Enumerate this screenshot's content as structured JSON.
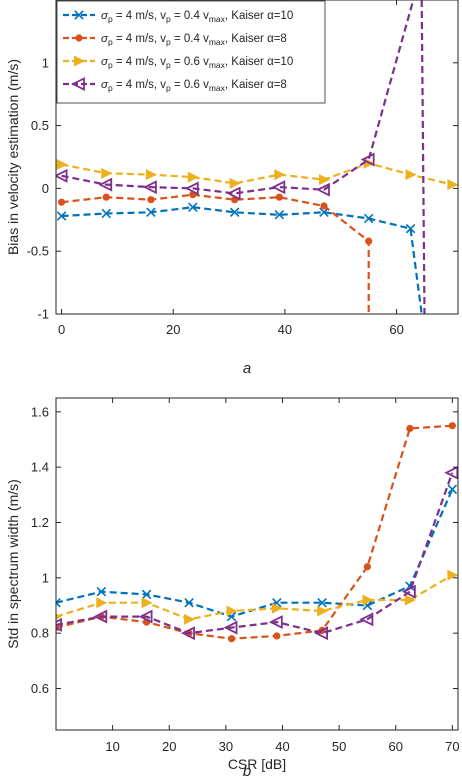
{
  "chart_data": [
    {
      "type": "line",
      "panel_label": "a",
      "xlabel": "",
      "ylabel": "Bias in velocity estimation (m/s)",
      "xlim": [
        -1,
        71
      ],
      "ylim": [
        -1,
        1.5
      ],
      "xticks": [
        0,
        20,
        40,
        60
      ],
      "yticks": [
        -1,
        -0.5,
        0,
        0.5,
        1
      ],
      "ytick_labels": [
        "-1",
        "-0.5",
        "0",
        "0.5",
        "1"
      ],
      "grid": false,
      "legend_position": "top-left",
      "colors": [
        "#0072BD",
        "#D95319",
        "#EDB120",
        "#7E2F8E"
      ],
      "legend": [
        {
          "pre": "σ",
          "pre_sub": "p",
          "mid": " = 4 m/s, v",
          "mid_sub": "p",
          "post": " = 0.4 v",
          "post_sub": "max",
          "end": ", Kaiser α=10"
        },
        {
          "pre": "σ",
          "pre_sub": "p",
          "mid": " = 4 m/s, v",
          "mid_sub": "p",
          "post": " = 0.4 v",
          "post_sub": "max",
          "end": ", Kaiser α=8"
        },
        {
          "pre": "σ",
          "pre_sub": "p",
          "mid": " = 4 m/s, v",
          "mid_sub": "p",
          "post": " = 0.6 v",
          "post_sub": "max",
          "end": ", Kaiser α=10"
        },
        {
          "pre": "σ",
          "pre_sub": "p",
          "mid": " = 4 m/s, v",
          "mid_sub": "p",
          "post": " = 0.6 v",
          "post_sub": "max",
          "end": ", Kaiser α=8"
        }
      ],
      "series": [
        {
          "marker": "x",
          "points": [
            [
              0,
              -0.22
            ],
            [
              8,
              -0.2
            ],
            [
              16,
              -0.19
            ],
            [
              23.5,
              -0.15
            ],
            [
              31,
              -0.19
            ],
            [
              39,
              -0.21
            ],
            [
              47,
              -0.19
            ],
            [
              55,
              -0.24
            ],
            [
              62.5,
              -0.32
            ],
            [
              64.5,
              -1.0
            ]
          ]
        },
        {
          "marker": "o",
          "points": [
            [
              0,
              -0.11
            ],
            [
              8,
              -0.07
            ],
            [
              16,
              -0.09
            ],
            [
              23.5,
              -0.05
            ],
            [
              31,
              -0.09
            ],
            [
              39,
              -0.07
            ],
            [
              47,
              -0.14
            ],
            [
              55,
              -0.42
            ],
            [
              55,
              -1.0
            ]
          ]
        },
        {
          "marker": "tri-right",
          "points": [
            [
              0,
              0.19
            ],
            [
              8,
              0.12
            ],
            [
              16,
              0.11
            ],
            [
              23.5,
              0.09
            ],
            [
              31,
              0.04
            ],
            [
              39,
              0.11
            ],
            [
              47,
              0.07
            ],
            [
              55,
              0.2
            ],
            [
              62.5,
              0.11
            ],
            [
              70,
              0.03
            ]
          ]
        },
        {
          "marker": "tri-left",
          "points": [
            [
              0,
              0.1
            ],
            [
              8,
              0.03
            ],
            [
              16,
              0.01
            ],
            [
              23.5,
              0.0
            ],
            [
              31,
              -0.04
            ],
            [
              39,
              0.01
            ],
            [
              47,
              -0.01
            ],
            [
              55,
              0.23
            ],
            [
              63,
              1.5
            ]
          ]
        },
        {
          "marker": "none",
          "points": [
            [
              64.5,
              1.5
            ],
            [
              65,
              -1.0
            ]
          ],
          "color_index": 3
        }
      ]
    },
    {
      "type": "line",
      "panel_label": "b",
      "xlabel": "CSR [dB]",
      "ylabel": "Std in spectrum width (m/s)",
      "xlim": [
        0,
        71
      ],
      "ylim": [
        0.45,
        1.65
      ],
      "xticks": [
        10,
        20,
        30,
        40,
        50,
        60,
        70
      ],
      "yticks": [
        0.6,
        0.8,
        1,
        1.2,
        1.4,
        1.6
      ],
      "ytick_labels": [
        "0.6",
        "0.8",
        "1",
        "1.2",
        "1.4",
        "1.6"
      ],
      "grid": false,
      "colors": [
        "#0072BD",
        "#D95319",
        "#EDB120",
        "#7E2F8E"
      ],
      "series": [
        {
          "marker": "x",
          "points": [
            [
              0,
              0.91
            ],
            [
              8,
              0.95
            ],
            [
              16,
              0.94
            ],
            [
              23.5,
              0.91
            ],
            [
              31,
              0.86
            ],
            [
              39,
              0.91
            ],
            [
              47,
              0.91
            ],
            [
              55,
              0.9
            ],
            [
              62.5,
              0.97
            ],
            [
              70,
              1.32
            ]
          ]
        },
        {
          "marker": "o",
          "points": [
            [
              0,
              0.82
            ],
            [
              8,
              0.86
            ],
            [
              16,
              0.84
            ],
            [
              23.5,
              0.8
            ],
            [
              31,
              0.78
            ],
            [
              39,
              0.79
            ],
            [
              47,
              0.81
            ],
            [
              55,
              1.04
            ],
            [
              62.5,
              1.54
            ],
            [
              70,
              1.55
            ]
          ]
        },
        {
          "marker": "tri-right",
          "points": [
            [
              0,
              0.86
            ],
            [
              8,
              0.91
            ],
            [
              16,
              0.91
            ],
            [
              23.5,
              0.85
            ],
            [
              31,
              0.88
            ],
            [
              39,
              0.89
            ],
            [
              47,
              0.88
            ],
            [
              55,
              0.92
            ],
            [
              62.5,
              0.92
            ],
            [
              70,
              1.01
            ]
          ]
        },
        {
          "marker": "tri-left",
          "points": [
            [
              0,
              0.83
            ],
            [
              8,
              0.86
            ],
            [
              16,
              0.86
            ],
            [
              23.5,
              0.8
            ],
            [
              31,
              0.82
            ],
            [
              39,
              0.84
            ],
            [
              47,
              0.8
            ],
            [
              55,
              0.85
            ],
            [
              62.5,
              0.95
            ],
            [
              70,
              1.38
            ]
          ]
        }
      ]
    }
  ]
}
